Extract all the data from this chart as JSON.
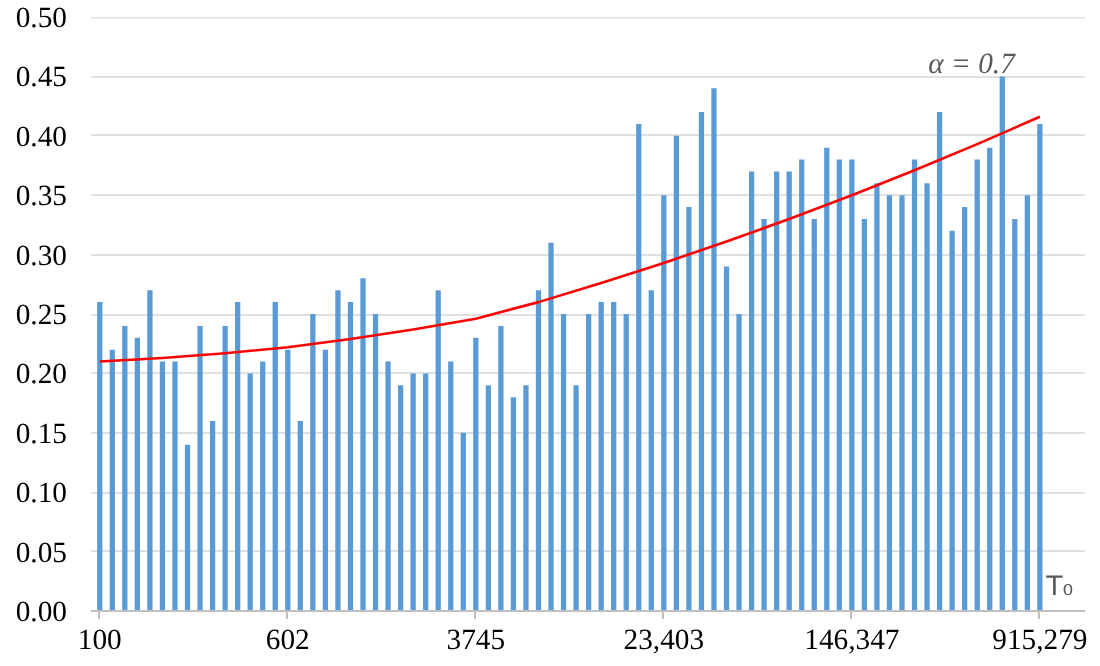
{
  "chart_data": {
    "type": "bar",
    "xlabel": "T₀",
    "annotations": [
      "α = 0.7"
    ],
    "categories": [
      "100",
      null,
      null,
      null,
      null,
      null,
      null,
      null,
      null,
      null,
      null,
      null,
      null,
      null,
      null,
      "602",
      null,
      null,
      null,
      null,
      null,
      null,
      null,
      null,
      null,
      null,
      null,
      null,
      null,
      null,
      "3745",
      null,
      null,
      null,
      null,
      null,
      null,
      null,
      null,
      null,
      null,
      null,
      null,
      null,
      null,
      "23,403",
      null,
      null,
      null,
      null,
      null,
      null,
      null,
      null,
      null,
      null,
      null,
      null,
      null,
      null,
      "146,347",
      null,
      null,
      null,
      null,
      null,
      null,
      null,
      null,
      null,
      null,
      null,
      null,
      null,
      null,
      "915,279"
    ],
    "series": [
      {
        "color": "#5b9bd5",
        "values": [
          0.26,
          0.22,
          0.24,
          0.23,
          0.27,
          0.21,
          0.21,
          0.14,
          0.24,
          0.16,
          0.24,
          0.26,
          0.2,
          0.21,
          0.26,
          0.22,
          0.16,
          0.25,
          0.22,
          0.27,
          0.26,
          0.28,
          0.25,
          0.21,
          0.19,
          0.2,
          0.2,
          0.27,
          0.21,
          0.15,
          0.23,
          0.19,
          0.24,
          0.18,
          0.19,
          0.27,
          0.31,
          0.25,
          0.19,
          0.25,
          0.26,
          0.26,
          0.25,
          0.41,
          0.27,
          0.35,
          0.4,
          0.34,
          0.42,
          0.44,
          0.29,
          0.25,
          0.37,
          0.33,
          0.37,
          0.37,
          0.38,
          0.33,
          0.39,
          0.38,
          0.38,
          0.33,
          0.36,
          0.35,
          0.35,
          0.38,
          0.36,
          0.42,
          0.32,
          0.34,
          0.38,
          0.39,
          0.45,
          0.33,
          0.35,
          0.41
        ]
      },
      {
        "type": "line",
        "color": "#ff0000",
        "values": [
          0.21,
          null,
          null,
          null,
          null,
          0.213,
          null,
          null,
          null,
          null,
          0.217,
          null,
          null,
          null,
          null,
          0.222,
          null,
          null,
          null,
          null,
          0.229,
          null,
          null,
          null,
          null,
          0.237,
          null,
          null,
          null,
          null,
          0.246,
          null,
          null,
          null,
          null,
          0.26,
          null,
          null,
          null,
          null,
          0.276,
          null,
          null,
          null,
          null,
          0.293,
          null,
          null,
          null,
          null,
          0.311,
          null,
          null,
          null,
          null,
          0.33,
          null,
          null,
          null,
          null,
          0.35,
          null,
          null,
          null,
          null,
          0.371,
          null,
          null,
          null,
          null,
          0.393,
          null,
          null,
          null,
          null,
          0.416
        ]
      }
    ],
    "ylim": [
      0,
      0.5
    ],
    "yticks": [
      {
        "value": 0,
        "label": "0.00"
      },
      {
        "value": 0.05,
        "label": "0.05"
      },
      {
        "value": 0.1,
        "label": "0.10"
      },
      {
        "value": 0.15,
        "label": "0.15"
      },
      {
        "value": 0.2,
        "label": "0.20"
      },
      {
        "value": 0.25,
        "label": "0.25"
      },
      {
        "value": 0.3,
        "label": "0.30"
      },
      {
        "value": 0.35,
        "label": "0.35"
      },
      {
        "value": 0.4,
        "label": "0.40"
      },
      {
        "value": 0.45,
        "label": "0.45"
      },
      {
        "value": 0.5,
        "label": "0.50"
      }
    ],
    "grid": "y"
  }
}
